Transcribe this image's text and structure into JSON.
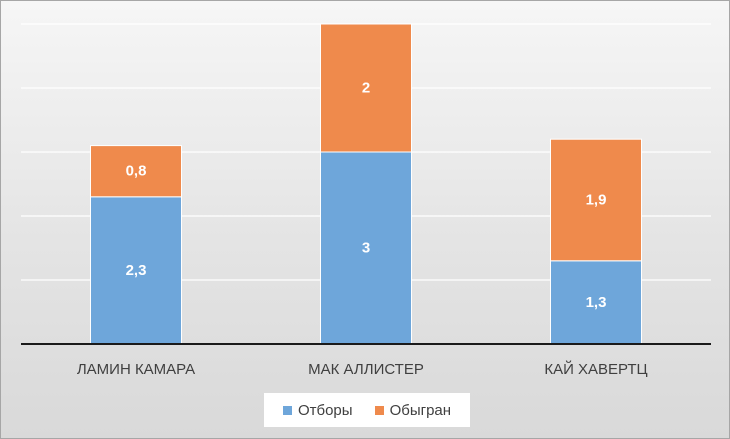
{
  "chart_data": {
    "type": "bar",
    "stacked": true,
    "categories": [
      "ЛАМИН КАМАРА",
      "МАК АЛЛИСТЕР",
      "КАЙ ХАВЕРТЦ"
    ],
    "series": [
      {
        "name": "Отборы",
        "values": [
          2.3,
          3,
          1.3
        ],
        "labels": [
          "2,3",
          "3",
          "1,3"
        ],
        "color": "#6ea6da"
      },
      {
        "name": "Обыгран",
        "values": [
          0.8,
          2,
          1.9
        ],
        "labels": [
          "0,8",
          "2",
          "1,9"
        ],
        "color": "#ef8a4c"
      }
    ],
    "ylim": [
      0,
      5
    ],
    "grid": true,
    "legend_position": "bottom"
  }
}
